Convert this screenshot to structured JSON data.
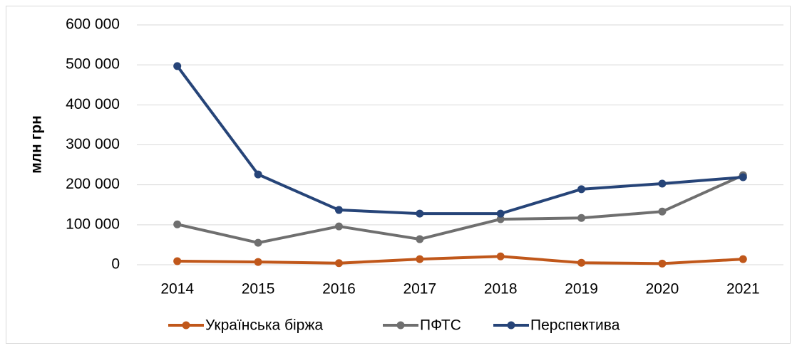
{
  "chart_data": {
    "type": "line",
    "y_label": "млн грн",
    "categories": [
      "2014",
      "2015",
      "2016",
      "2017",
      "2018",
      "2019",
      "2020",
      "2021"
    ],
    "series": [
      {
        "name": "Українська біржа",
        "color": "#c0571a",
        "values": [
          9000,
          7000,
          4000,
          14000,
          21000,
          5000,
          3000,
          14000
        ]
      },
      {
        "name": "ПФТС",
        "color": "#6f6f6f",
        "values": [
          101000,
          55000,
          96000,
          64000,
          114000,
          117000,
          133000,
          224000
        ]
      },
      {
        "name": "Перспектива",
        "color": "#264478",
        "values": [
          497000,
          226000,
          137000,
          128000,
          128000,
          189000,
          203000,
          219000
        ]
      }
    ],
    "ylim": [
      0,
      600000
    ],
    "yticks": [
      {
        "value": 0,
        "label": "0"
      },
      {
        "value": 100000,
        "label": "100 000"
      },
      {
        "value": 200000,
        "label": "200 000"
      },
      {
        "value": 300000,
        "label": "300 000"
      },
      {
        "value": 400000,
        "label": "400 000"
      },
      {
        "value": 500000,
        "label": "500 000"
      },
      {
        "value": 600000,
        "label": "600 000"
      }
    ],
    "grid": true,
    "legend": "bottom"
  }
}
